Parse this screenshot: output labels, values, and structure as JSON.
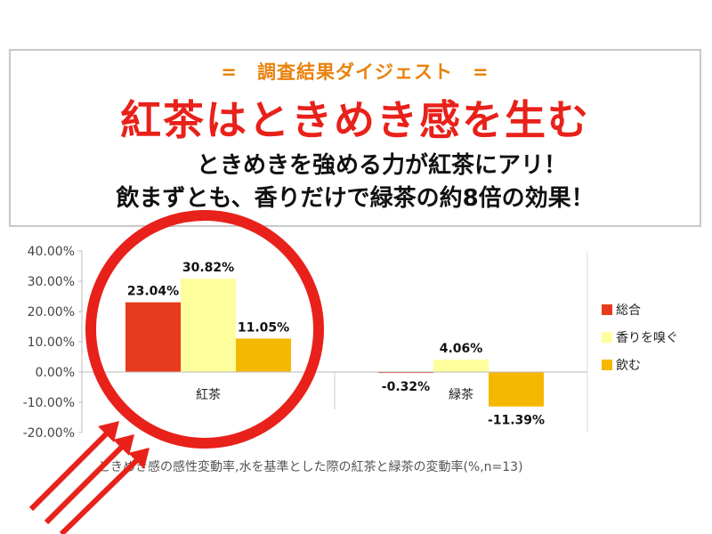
{
  "header": {
    "digest": "=　調査結果ダイジェスト　=",
    "headline": "紅茶はときめき感を生む",
    "subline1": "ときめきを強める力が紅茶にアリ！",
    "subline2": "飲まずとも、香りだけで緑茶の約8倍の効果！"
  },
  "chart_data": {
    "type": "bar",
    "categories": [
      "紅茶",
      "緑茶"
    ],
    "series": [
      {
        "name": "総合",
        "values": [
          23.04,
          -0.32
        ],
        "color": "#e83a1c",
        "labels": [
          "23.04%",
          "-0.32%"
        ]
      },
      {
        "name": "香りを嗅ぐ",
        "values": [
          30.82,
          4.06
        ],
        "color": "#fefe9c",
        "labels": [
          "30.82%",
          "4.06%"
        ]
      },
      {
        "name": "飲む",
        "values": [
          11.05,
          -11.39
        ],
        "color": "#f5b800",
        "labels": [
          "11.05%",
          "-11.39%"
        ]
      }
    ],
    "yticks": [
      "40.00%",
      "30.00%",
      "20.00%",
      "10.00%",
      "0.00%",
      "-10.00%",
      "-20.00%"
    ],
    "ylim": [
      -20,
      40
    ],
    "ylabel": "",
    "xlabel": "",
    "legend_position": "right",
    "grid": false,
    "caption": "ときめき感の感性変動率,水を基準とした際の紅茶と緑茶の変動率(%,n=13)"
  },
  "annotation": {
    "circle_color": "#e8211a",
    "arrow_color": "#e8211a"
  }
}
